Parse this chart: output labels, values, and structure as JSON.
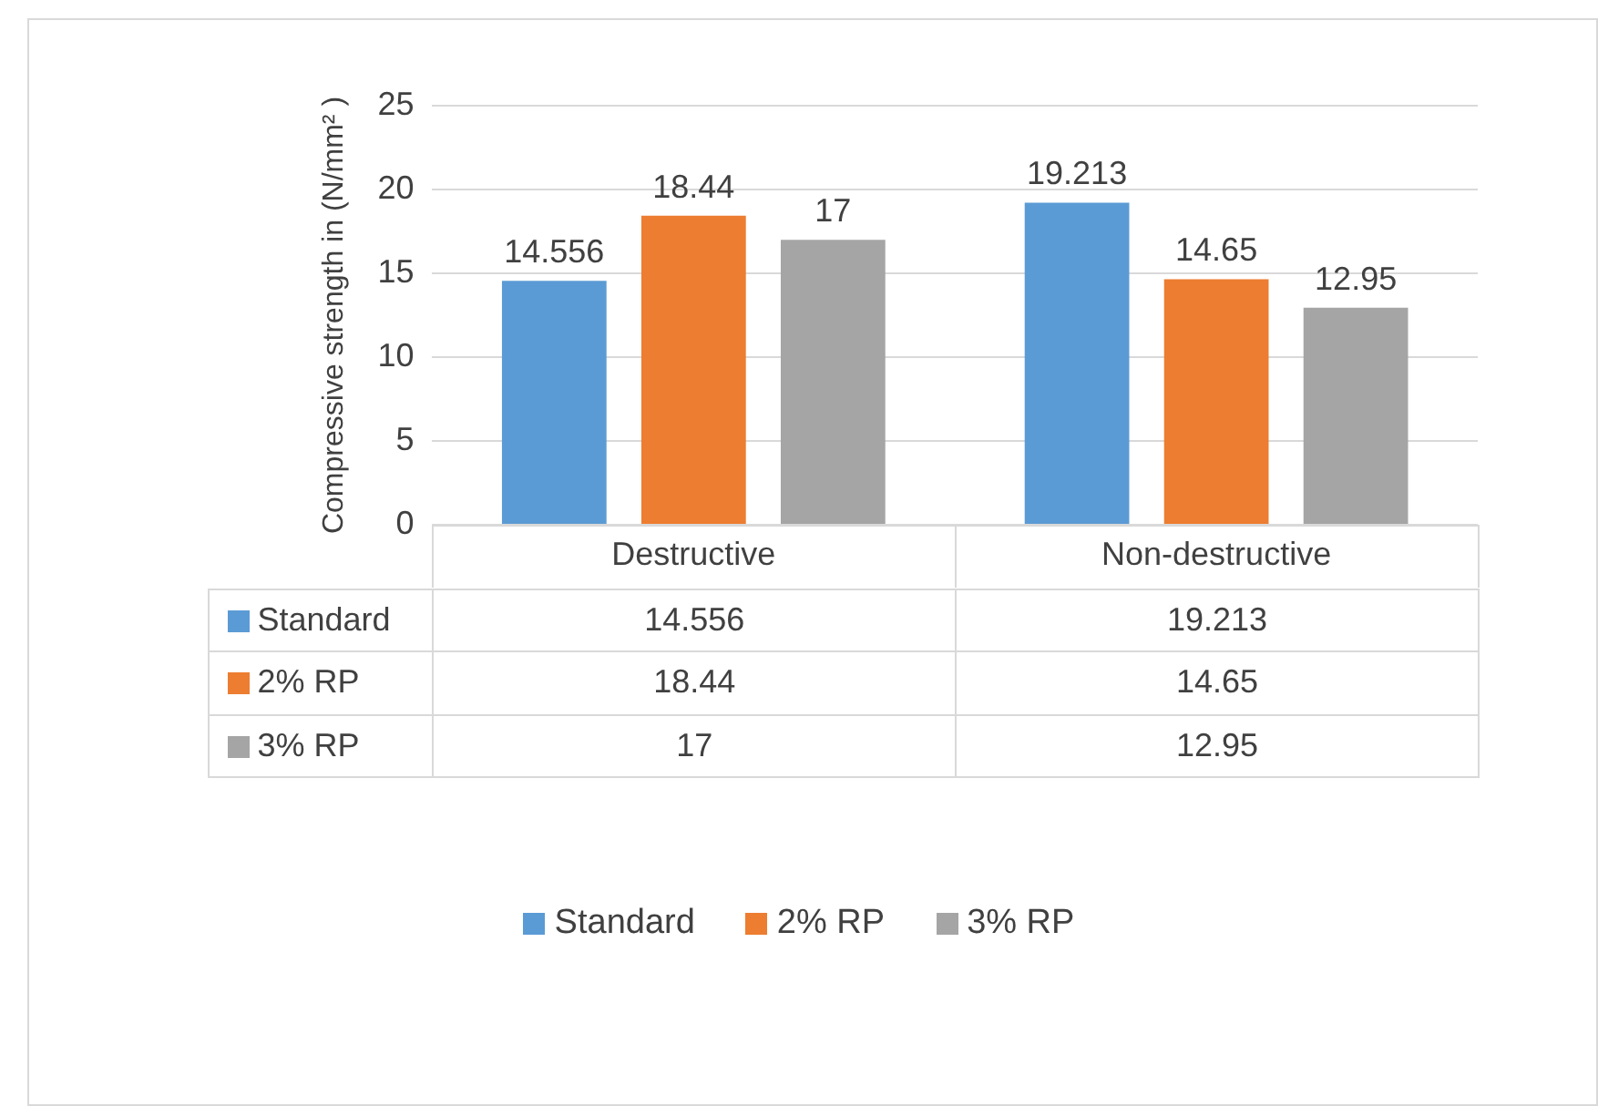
{
  "chart_data": [
    {
      "type": "bar",
      "ylabel": "Compressive strength in (N/mm² )",
      "categories": [
        "Destructive",
        "Non-destructive"
      ],
      "series": [
        {
          "name": "Standard",
          "color": "#5b9bd5",
          "values": [
            14.556,
            19.213
          ]
        },
        {
          "name": "2% RP",
          "color": "#ed7d31",
          "values": [
            18.44,
            14.65
          ]
        },
        {
          "name": "3% RP",
          "color": "#a5a5a5",
          "values": [
            17,
            12.95
          ]
        }
      ],
      "ylim": [
        0,
        25
      ],
      "yticks": [
        0,
        5,
        10,
        15,
        20,
        25
      ],
      "grid": "y",
      "data_labels": true,
      "legend": "bottom"
    },
    {
      "type": "other",
      "y_categories": [
        "Standard",
        "2% RP",
        "3% RP"
      ],
      "colors": [
        "#5b9bd5",
        "#ed7d31",
        "#a5a5a5"
      ],
      "cell_labels": [
        [
          "14.556",
          "19.213"
        ],
        [
          "18.44",
          "14.65"
        ],
        [
          "17",
          "12.95"
        ]
      ]
    }
  ]
}
